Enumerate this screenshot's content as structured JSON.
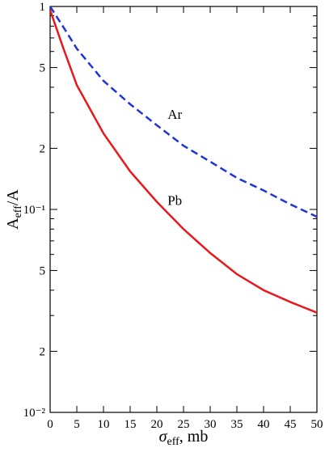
{
  "chart_data": {
    "type": "line",
    "xlabel": {
      "text": "σ",
      "sub": "eff",
      "rest": ", mb"
    },
    "ylabel": {
      "text": "A",
      "sub": "eff",
      "rest": "/A"
    },
    "log_y": true,
    "xlim": [
      0,
      50
    ],
    "xticks": [
      0,
      5,
      10,
      15,
      20,
      25,
      30,
      35,
      40,
      45,
      50
    ],
    "ylim": [
      0.01,
      1
    ],
    "yticks": [
      {
        "value": 0.01,
        "label": "10⁻²"
      },
      {
        "value": 0.02,
        "label": "2"
      },
      {
        "value": 0.05,
        "label": "5"
      },
      {
        "value": 0.1,
        "label": "10⁻¹"
      },
      {
        "value": 0.2,
        "label": "2"
      },
      {
        "value": 0.5,
        "label": "5"
      },
      1
    ],
    "yminor_ticks": [
      0.03,
      0.04,
      0.06,
      0.07,
      0.08,
      0.09,
      0.3,
      0.4,
      0.6,
      0.7,
      0.8,
      0.9
    ],
    "x": [
      0,
      2.5,
      5,
      10,
      15,
      20,
      25,
      30,
      35,
      40,
      45,
      50
    ],
    "series": [
      {
        "name": "Ar",
        "color": "#1f35d8",
        "dashed": true,
        "values": [
          1,
          0.79,
          0.62,
          0.43,
          0.33,
          0.26,
          0.206,
          0.172,
          0.143,
          0.124,
          0.106,
          0.092
        ]
      },
      {
        "name": "Pb",
        "color": "#e8191d",
        "dashed": false,
        "values": [
          0.96,
          0.62,
          0.41,
          0.237,
          0.154,
          0.109,
          0.08,
          0.061,
          0.048,
          0.04,
          0.035,
          0.031
        ]
      }
    ]
  }
}
